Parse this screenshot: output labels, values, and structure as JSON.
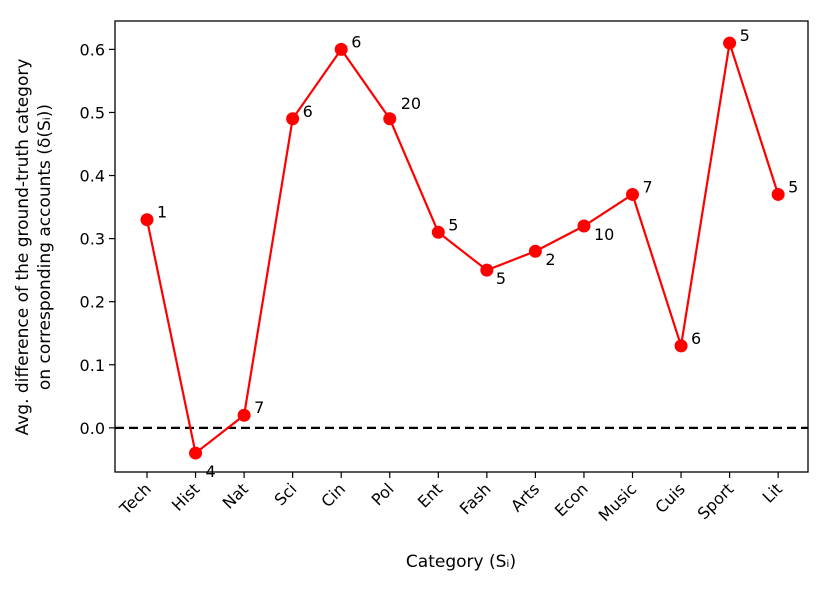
{
  "chart_data": {
    "type": "line",
    "categories": [
      "Tech",
      "Hist",
      "Nat",
      "Sci",
      "Cin",
      "Pol",
      "Ent",
      "Fash",
      "Arts",
      "Econ",
      "Music",
      "Cuis",
      "Sport",
      "Lit"
    ],
    "series": [
      {
        "values": [
          0.33,
          -0.04,
          0.02,
          0.49,
          0.6,
          0.49,
          0.31,
          0.25,
          0.28,
          0.32,
          0.37,
          0.13,
          0.61,
          0.37
        ],
        "color": "#ff0000"
      }
    ],
    "point_labels": [
      "1",
      "4",
      "7",
      "6",
      "6",
      "20",
      "5",
      "5",
      "2",
      "10",
      "7",
      "6",
      "5",
      "5"
    ],
    "xlabel": "Category (Sᵢ)",
    "ylabel_line1": "Avg. difference of the ground-truth category",
    "ylabel_line2": "on corresponding accounts (δ(Sᵢ))",
    "ylim": [
      -0.07,
      0.645
    ],
    "yticks": [
      0.0,
      0.1,
      0.2,
      0.3,
      0.4,
      0.5,
      0.6
    ],
    "ytick_labels": [
      "0.0",
      "0.1",
      "0.2",
      "0.3",
      "0.4",
      "0.5",
      "0.6"
    ],
    "reference_line": {
      "y": 0.0,
      "style": "dashed",
      "color": "#000000"
    },
    "grid": false,
    "legend": "none"
  }
}
